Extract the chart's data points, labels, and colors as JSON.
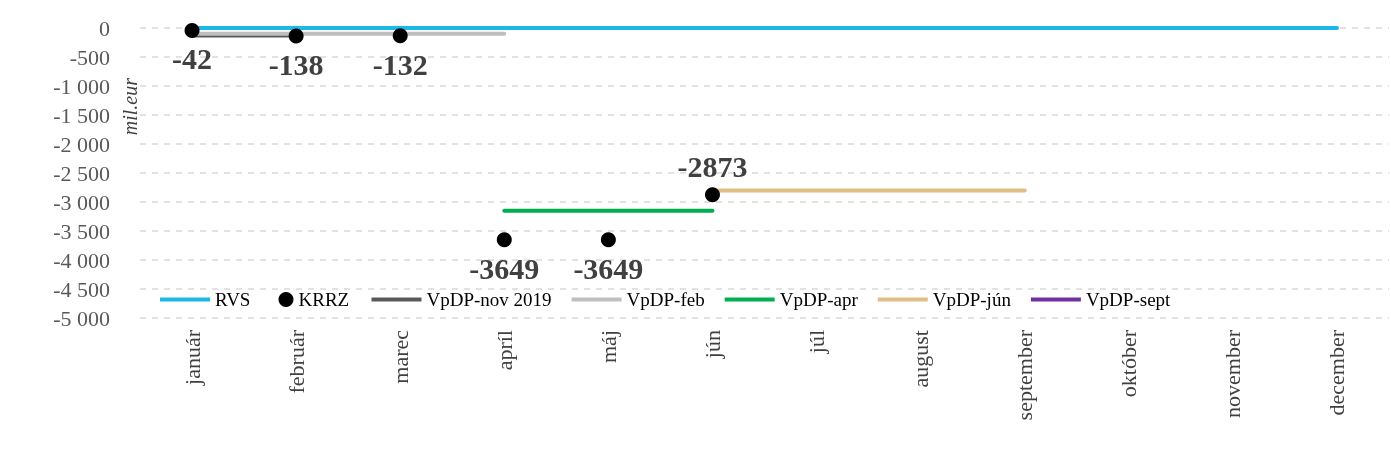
{
  "chart_data": {
    "type": "line",
    "ylabel": "mil.eur",
    "categories": [
      "január",
      "február",
      "marec",
      "apríl",
      "máj",
      "jún",
      "júl",
      "august",
      "september",
      "október",
      "november",
      "december"
    ],
    "series": [
      {
        "name": "RVS",
        "color": "#1cb8e8",
        "values": [
          0,
          0,
          0,
          0,
          0,
          0,
          0,
          0,
          0,
          0,
          0,
          0
        ]
      },
      {
        "name": "KRRZ",
        "type": "scatter",
        "color": "#000000",
        "marker": "circle",
        "values": [
          -42,
          -138,
          -132,
          -3649,
          -3649,
          -2873,
          null,
          null,
          null,
          null,
          null,
          null
        ],
        "value_labels": [
          "-42",
          "-138",
          "-132",
          "-3649",
          "-3649",
          "-2873",
          null,
          null,
          null,
          null,
          null,
          null
        ]
      },
      {
        "name": "VpDP-nov 2019",
        "color": "#595959",
        "values": [
          -130,
          -130,
          null,
          null,
          null,
          null,
          null,
          null,
          null,
          null,
          null,
          null
        ]
      },
      {
        "name": "VpDP-feb",
        "color": "#bfbfbf",
        "values": [
          -100,
          -100,
          -100,
          -100,
          null,
          null,
          null,
          null,
          null,
          null,
          null,
          null
        ]
      },
      {
        "name": "VpDP-apr",
        "color": "#00b050",
        "values": [
          null,
          null,
          null,
          -3150,
          -3150,
          -3150,
          null,
          null,
          null,
          null,
          null,
          null
        ]
      },
      {
        "name": "VpDP-jún",
        "color": "#dfbf85",
        "values": [
          null,
          null,
          null,
          null,
          null,
          -2800,
          -2800,
          -2800,
          -2800,
          null,
          null,
          null
        ]
      },
      {
        "name": "VpDP-sept",
        "color": "#7030a0",
        "values": [
          null,
          null,
          null,
          null,
          null,
          null,
          null,
          null,
          null,
          null,
          null,
          null
        ]
      }
    ],
    "ylim": [
      -5000,
      0
    ],
    "yticks": [
      {
        "value": -5000,
        "label": "-5 000"
      },
      {
        "value": -4500,
        "label": "-4 500"
      },
      {
        "value": -4000,
        "label": "-4 000"
      },
      {
        "value": -3500,
        "label": "-3 500"
      },
      {
        "value": -3000,
        "label": "-3 000"
      },
      {
        "value": -2500,
        "label": "-2 500"
      },
      {
        "value": -2000,
        "label": "-2 000"
      },
      {
        "value": -1500,
        "label": "-1 500"
      },
      {
        "value": -1000,
        "label": "-1 000"
      },
      {
        "value": -500,
        "label": "-500"
      },
      {
        "value": 0,
        "label": "0"
      }
    ],
    "grid": "y",
    "legend": "bottom",
    "marker": "none",
    "line_style": "solid"
  }
}
